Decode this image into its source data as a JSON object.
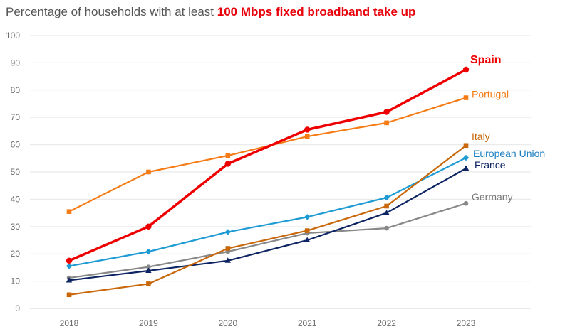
{
  "chart_data": {
    "type": "line",
    "title": "Percentage of households with at least 100 Mbps fixed broadband take up",
    "title_parts": {
      "plain": "Percentage of households with at least ",
      "highlight": "100 Mbps fixed broadband take up",
      "highlight_color": "#e8000b"
    },
    "xlabel": "",
    "ylabel": "",
    "x": [
      "2018",
      "2019",
      "2020",
      "2021",
      "2022",
      "2023"
    ],
    "ylim": [
      0,
      100
    ],
    "yticks": [
      "0",
      "10",
      "20",
      "30",
      "40",
      "50",
      "60",
      "70",
      "80",
      "90",
      "100"
    ],
    "grid": true,
    "legend": "direct labels at right end of each line",
    "series": [
      {
        "name": "Spain",
        "color": "#ee0000",
        "marker": "circle",
        "bold": true,
        "values": [
          17.5,
          30.0,
          53.0,
          65.5,
          72.0,
          87.5
        ]
      },
      {
        "name": "Portugal",
        "color": "#f57c15",
        "marker": "square",
        "bold": false,
        "values": [
          35.5,
          50.0,
          56.0,
          63.0,
          68.0,
          77.2
        ]
      },
      {
        "name": "Italy",
        "color": "#c8680a",
        "marker": "square",
        "bold": false,
        "values": [
          5.0,
          9.0,
          22.0,
          28.5,
          37.5,
          59.7
        ]
      },
      {
        "name": "European Union",
        "color": "#1f9bd4",
        "marker": "diamond",
        "bold": false,
        "label_color": "#1a7fc0",
        "values": [
          15.5,
          20.8,
          28.0,
          33.5,
          40.6,
          55.2
        ]
      },
      {
        "name": "France",
        "color": "#0d2463",
        "marker": "triangle",
        "bold": false,
        "values": [
          10.3,
          13.8,
          17.5,
          25.0,
          35.0,
          51.3
        ]
      },
      {
        "name": "Germany",
        "color": "#888888",
        "marker": "circle",
        "bold": false,
        "label_color": "#7a7a7a",
        "values": [
          11.2,
          15.2,
          20.8,
          27.6,
          29.4,
          38.5
        ]
      }
    ]
  }
}
